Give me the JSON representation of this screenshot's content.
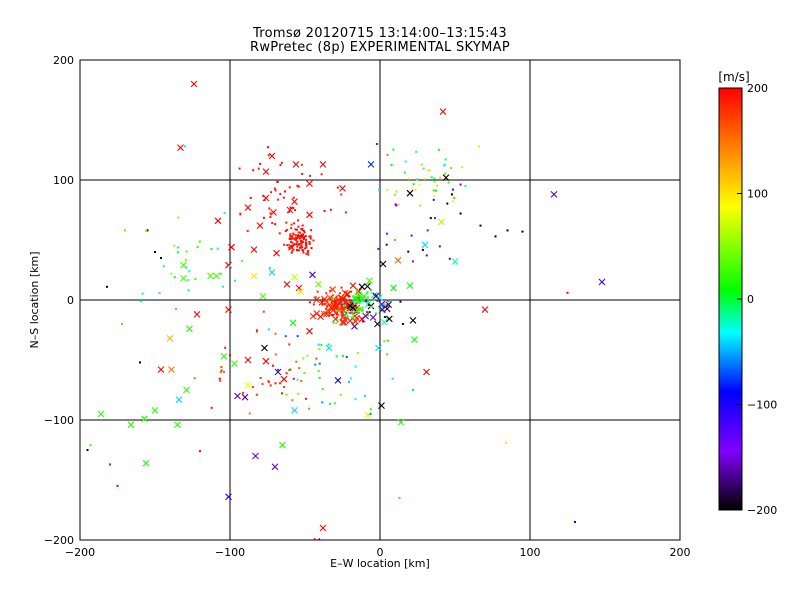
{
  "title_line1": "Tromsø 20120715 13:14:00–13:15:43",
  "title_line2": "RwPretec (8p) EXPERIMENTAL SKYMAP",
  "chart_data": {
    "type": "scatter",
    "title": "Tromsø 20120715 13:14:00–13:15:43",
    "subtitle": "RwPretec (8p) EXPERIMENTAL SKYMAP",
    "xlabel": "E–W location [km]",
    "ylabel": "N–S location [km]",
    "xlim": [
      -200,
      200
    ],
    "ylim": [
      -200,
      200
    ],
    "xticks": [
      -200,
      -100,
      0,
      100,
      200
    ],
    "yticks": [
      -200,
      -100,
      0,
      100,
      200
    ],
    "grid_lines": [
      -100,
      0,
      100
    ],
    "colorbar": {
      "label": "[m/s]",
      "range": [
        -200,
        200
      ],
      "ticks": [
        200,
        100,
        0,
        -100,
        -200
      ],
      "colormap": [
        "#000000",
        "#8000ff",
        "#0000ff",
        "#00ffff",
        "#00ff00",
        "#ffff00",
        "#ff8000",
        "#ff0000"
      ]
    },
    "marker_legend": {
      "large": "x",
      "small": "·"
    },
    "points": [
      {
        "x": -124,
        "y": 180,
        "v": 200,
        "m": "x"
      },
      {
        "x": 42,
        "y": 157,
        "v": 200,
        "m": "x"
      },
      {
        "x": -133,
        "y": 127,
        "v": 200,
        "m": "x"
      },
      {
        "x": -72,
        "y": 120,
        "v": 200,
        "m": "x"
      },
      {
        "x": -56,
        "y": 113,
        "v": 200,
        "m": "x"
      },
      {
        "x": -38,
        "y": 113,
        "v": 200,
        "m": "x"
      },
      {
        "x": -76,
        "y": 107,
        "v": 200,
        "m": "x"
      },
      {
        "x": -47,
        "y": 97,
        "v": 200,
        "m": "x"
      },
      {
        "x": -25,
        "y": 93,
        "v": 200,
        "m": "x"
      },
      {
        "x": -76,
        "y": 85,
        "v": 200,
        "m": "x"
      },
      {
        "x": -57,
        "y": 82,
        "v": 200,
        "m": "x"
      },
      {
        "x": -60,
        "y": 75,
        "v": 200,
        "m": "x"
      },
      {
        "x": -88,
        "y": 77,
        "v": 200,
        "m": "x"
      },
      {
        "x": -71,
        "y": 73,
        "v": 200,
        "m": "x"
      },
      {
        "x": -108,
        "y": 66,
        "v": 200,
        "m": "x"
      },
      {
        "x": -80,
        "y": 62,
        "v": 200,
        "m": "x"
      },
      {
        "x": -47,
        "y": 71,
        "v": 200,
        "m": "x"
      },
      {
        "x": -99,
        "y": 44,
        "v": 200,
        "m": "x"
      },
      {
        "x": -84,
        "y": 42,
        "v": 200,
        "m": "x"
      },
      {
        "x": -59,
        "y": 44,
        "v": 200,
        "m": "x"
      },
      {
        "x": -69,
        "y": 39,
        "v": 200,
        "m": "x"
      },
      {
        "x": -101,
        "y": 29,
        "v": 200,
        "m": "x"
      },
      {
        "x": -62,
        "y": 13,
        "v": 200,
        "m": "x"
      },
      {
        "x": -54,
        "y": 10,
        "v": 200,
        "m": "x"
      },
      {
        "x": -18,
        "y": 12,
        "v": 200,
        "m": "x"
      },
      {
        "x": -122,
        "y": -12,
        "v": 200,
        "m": "x"
      },
      {
        "x": -101,
        "y": -8,
        "v": 200,
        "m": "x"
      },
      {
        "x": -47,
        "y": -26,
        "v": 200,
        "m": "x"
      },
      {
        "x": -32,
        "y": -7,
        "v": 200,
        "m": "x"
      },
      {
        "x": -24,
        "y": -13,
        "v": 200,
        "m": "x"
      },
      {
        "x": -17,
        "y": -4,
        "v": 200,
        "m": "x"
      },
      {
        "x": -12,
        "y": -16,
        "v": 200,
        "m": "x"
      },
      {
        "x": 70,
        "y": -8,
        "v": 200,
        "m": "x"
      },
      {
        "x": -88,
        "y": -50,
        "v": 200,
        "m": "x"
      },
      {
        "x": -76,
        "y": -51,
        "v": 200,
        "m": "x"
      },
      {
        "x": -146,
        "y": -58,
        "v": 200,
        "m": "x"
      },
      {
        "x": -64,
        "y": -66,
        "v": 200,
        "m": "x"
      },
      {
        "x": 31,
        "y": -60,
        "v": 200,
        "m": "x"
      },
      {
        "x": -38,
        "y": -190,
        "v": 200,
        "m": "x"
      },
      {
        "x": -42,
        "y": -201,
        "v": 200,
        "m": "x"
      },
      {
        "x": 12,
        "y": 33,
        "v": 160,
        "m": "x"
      },
      {
        "x": -139,
        "y": -58,
        "v": 150,
        "m": "x"
      },
      {
        "x": -140,
        "y": -32,
        "v": 120,
        "m": "x"
      },
      {
        "x": -84,
        "y": 20,
        "v": 100,
        "m": "x"
      },
      {
        "x": -53,
        "y": 7,
        "v": 100,
        "m": "x"
      },
      {
        "x": -15,
        "y": 3,
        "v": 100,
        "m": "x"
      },
      {
        "x": -88,
        "y": -71,
        "v": 90,
        "m": "x"
      },
      {
        "x": -8,
        "y": -96,
        "v": 100,
        "m": "x"
      },
      {
        "x": 41,
        "y": 65,
        "v": 60,
        "m": "x"
      },
      {
        "x": -57,
        "y": 19,
        "v": 70,
        "m": "x"
      },
      {
        "x": -41,
        "y": 13,
        "v": 40,
        "m": "x"
      },
      {
        "x": -7,
        "y": 16,
        "v": 30,
        "m": "x"
      },
      {
        "x": -127,
        "y": -24,
        "v": 20,
        "m": "x"
      },
      {
        "x": -104,
        "y": -47,
        "v": 20,
        "m": "x"
      },
      {
        "x": -129,
        "y": -75,
        "v": 20,
        "m": "x"
      },
      {
        "x": -97,
        "y": -53,
        "v": 20,
        "m": "x"
      },
      {
        "x": -150,
        "y": -92,
        "v": 20,
        "m": "x"
      },
      {
        "x": -166,
        "y": -104,
        "v": 20,
        "m": "x"
      },
      {
        "x": -157,
        "y": -99,
        "v": 20,
        "m": "x"
      },
      {
        "x": -135,
        "y": -104,
        "v": 20,
        "m": "x"
      },
      {
        "x": -156,
        "y": -136,
        "v": 20,
        "m": "x"
      },
      {
        "x": -186,
        "y": -95,
        "v": 20,
        "m": "x"
      },
      {
        "x": -65,
        "y": -121,
        "v": 20,
        "m": "x"
      },
      {
        "x": 14,
        "y": -102,
        "v": 20,
        "m": "x"
      },
      {
        "x": -131,
        "y": 29,
        "v": 30,
        "m": "x"
      },
      {
        "x": -131,
        "y": 18,
        "v": 30,
        "m": "x"
      },
      {
        "x": -113,
        "y": 20,
        "v": 30,
        "m": "x"
      },
      {
        "x": -78,
        "y": 3,
        "v": 30,
        "m": "x"
      },
      {
        "x": -109,
        "y": 20,
        "v": 30,
        "m": "x"
      },
      {
        "x": 9,
        "y": 10,
        "v": 10,
        "m": "x"
      },
      {
        "x": 20,
        "y": 12,
        "v": 10,
        "m": "x"
      },
      {
        "x": 23,
        "y": -33,
        "v": 10,
        "m": "x"
      },
      {
        "x": -58,
        "y": -19,
        "v": 10,
        "m": "x"
      },
      {
        "x": 50,
        "y": 32,
        "v": -20,
        "m": "x"
      },
      {
        "x": 30,
        "y": 46,
        "v": -40,
        "m": "x"
      },
      {
        "x": -72,
        "y": 23,
        "v": -40,
        "m": "x"
      },
      {
        "x": -134,
        "y": -83,
        "v": -40,
        "m": "x"
      },
      {
        "x": -57,
        "y": -92,
        "v": -40,
        "m": "x"
      },
      {
        "x": -34,
        "y": -40,
        "v": -40,
        "m": "x"
      },
      {
        "x": -1,
        "y": -40,
        "v": -40,
        "m": "x"
      },
      {
        "x": -16,
        "y": 0,
        "v": -50,
        "m": "x"
      },
      {
        "x": -6,
        "y": 113,
        "v": -80,
        "m": "x"
      },
      {
        "x": -68,
        "y": -60,
        "v": -80,
        "m": "x"
      },
      {
        "x": -28,
        "y": -67,
        "v": -90,
        "m": "x"
      },
      {
        "x": 148,
        "y": 15,
        "v": -110,
        "m": "x"
      },
      {
        "x": -101,
        "y": -164,
        "v": -110,
        "m": "x"
      },
      {
        "x": -45,
        "y": 21,
        "v": -120,
        "m": "x"
      },
      {
        "x": -83,
        "y": -130,
        "v": -150,
        "m": "x"
      },
      {
        "x": -70,
        "y": -139,
        "v": -150,
        "m": "x"
      },
      {
        "x": 116,
        "y": 88,
        "v": -160,
        "m": "x"
      },
      {
        "x": -95,
        "y": -80,
        "v": -160,
        "m": "x"
      },
      {
        "x": -90,
        "y": -81,
        "v": -160,
        "m": "x"
      },
      {
        "x": -17,
        "y": -22,
        "v": -170,
        "m": "x"
      },
      {
        "x": 44,
        "y": 102,
        "v": -200,
        "m": "x"
      },
      {
        "x": 20,
        "y": 89,
        "v": -200,
        "m": "x"
      },
      {
        "x": 2,
        "y": 30,
        "v": -200,
        "m": "x"
      },
      {
        "x": -12,
        "y": 11,
        "v": -200,
        "m": "x"
      },
      {
        "x": -77,
        "y": -40,
        "v": -200,
        "m": "x"
      },
      {
        "x": 22,
        "y": -17,
        "v": -200,
        "m": "x"
      },
      {
        "x": 1,
        "y": -88,
        "v": -200,
        "m": "x"
      },
      {
        "x": -6,
        "y": -5,
        "v": -200,
        "m": "x"
      },
      {
        "x": 125,
        "y": 6,
        "v": 200,
        "m": "."
      },
      {
        "x": -175,
        "y": -155,
        "v": 200,
        "m": "."
      },
      {
        "x": -180,
        "y": -137,
        "v": 200,
        "m": "."
      },
      {
        "x": -120,
        "y": -126,
        "v": 200,
        "m": "."
      },
      {
        "x": -100,
        "y": -46,
        "v": 200,
        "m": "."
      },
      {
        "x": 5,
        "y": 121,
        "v": 150,
        "m": "."
      },
      {
        "x": 66,
        "y": 128,
        "v": 100,
        "m": "."
      },
      {
        "x": 84,
        "y": -119,
        "v": 70,
        "m": "."
      },
      {
        "x": 10,
        "y": 50,
        "v": 20,
        "m": "."
      },
      {
        "x": -2,
        "y": 130,
        "v": 200,
        "m": "."
      },
      {
        "x": -170,
        "y": 58,
        "v": 30,
        "m": "."
      },
      {
        "x": -172,
        "y": -20,
        "v": 20,
        "m": "."
      },
      {
        "x": -193,
        "y": -121,
        "v": 20,
        "m": "."
      },
      {
        "x": 22,
        "y": -75,
        "v": 10,
        "m": "."
      },
      {
        "x": 13,
        "y": -165,
        "v": 20,
        "m": "."
      },
      {
        "x": 130,
        "y": -185,
        "v": -90,
        "m": "."
      },
      {
        "x": -130,
        "y": 128,
        "v": -20,
        "m": "."
      },
      {
        "x": -150,
        "y": 40,
        "v": -200,
        "m": "."
      },
      {
        "x": -146,
        "y": 35,
        "v": -200,
        "m": "."
      },
      {
        "x": -160,
        "y": -52,
        "v": -200,
        "m": "."
      },
      {
        "x": -195,
        "y": -125,
        "v": -200,
        "m": "."
      },
      {
        "x": -182,
        "y": 11,
        "v": -200,
        "m": "."
      },
      {
        "x": 95,
        "y": 57,
        "v": -200,
        "m": "."
      },
      {
        "x": 85,
        "y": 58,
        "v": -200,
        "m": "."
      },
      {
        "x": 77,
        "y": 53,
        "v": -200,
        "m": "."
      },
      {
        "x": 67,
        "y": 62,
        "v": -200,
        "m": "."
      },
      {
        "x": 48,
        "y": 88,
        "v": -200,
        "m": "."
      },
      {
        "x": -155,
        "y": 58,
        "v": -200,
        "m": "."
      }
    ]
  }
}
